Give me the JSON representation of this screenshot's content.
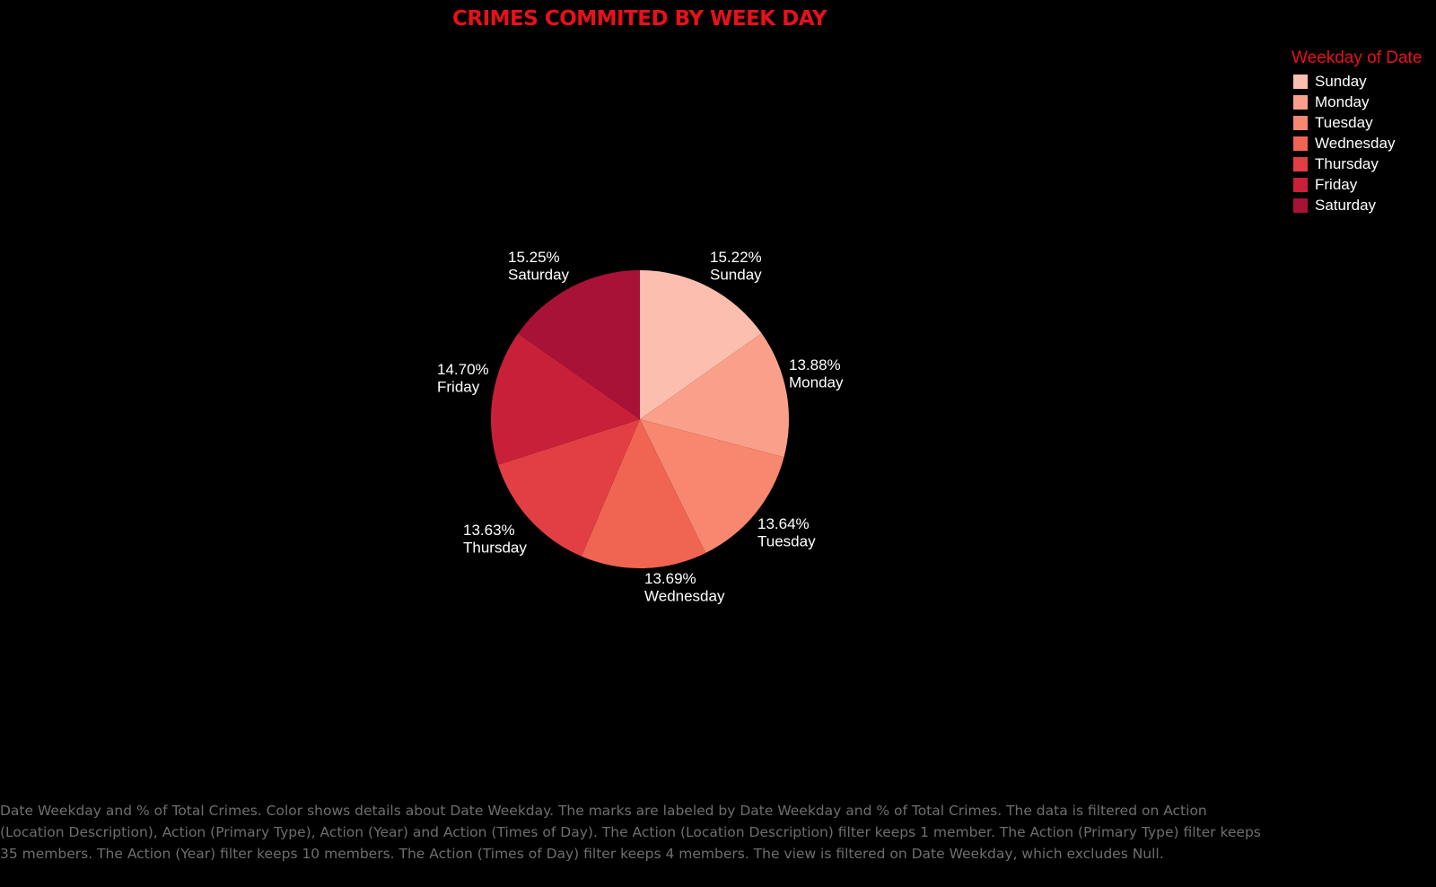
{
  "chart_data": {
    "type": "pie",
    "title": "CRIMES COMMITED BY WEEK DAY",
    "legend_title": "Weekday of Date",
    "legend_position": "top-right",
    "slices": [
      {
        "label": "Sunday",
        "value": 15.22,
        "value_label": "15.22%",
        "color": "#fcbeae"
      },
      {
        "label": "Monday",
        "value": 13.88,
        "value_label": "13.88%",
        "color": "#faa08a"
      },
      {
        "label": "Tuesday",
        "value": 13.64,
        "value_label": "13.64%",
        "color": "#f7876e"
      },
      {
        "label": "Wednesday",
        "value": 13.69,
        "value_label": "13.69%",
        "color": "#f06552"
      },
      {
        "label": "Thursday",
        "value": 13.63,
        "value_label": "13.63%",
        "color": "#e23f45"
      },
      {
        "label": "Friday",
        "value": 14.7,
        "value_label": "14.70%",
        "color": "#c9203a"
      },
      {
        "label": "Saturday",
        "value": 15.25,
        "value_label": "15.25%",
        "color": "#a81237"
      }
    ]
  },
  "caption": "Date Weekday and % of Total Crimes.  Color shows details about Date Weekday.  The marks are labeled by Date Weekday and % of Total Crimes. The data is filtered on Action (Location Description), Action (Primary Type), Action (Year) and Action (Times of Day). The Action (Location Description) filter keeps 1 member. The Action (Primary Type) filter keeps 35 members. The Action (Year) filter keeps 10 members. The Action (Times of Day) filter keeps 4 members. The view is filtered on Date Weekday, which excludes Null."
}
